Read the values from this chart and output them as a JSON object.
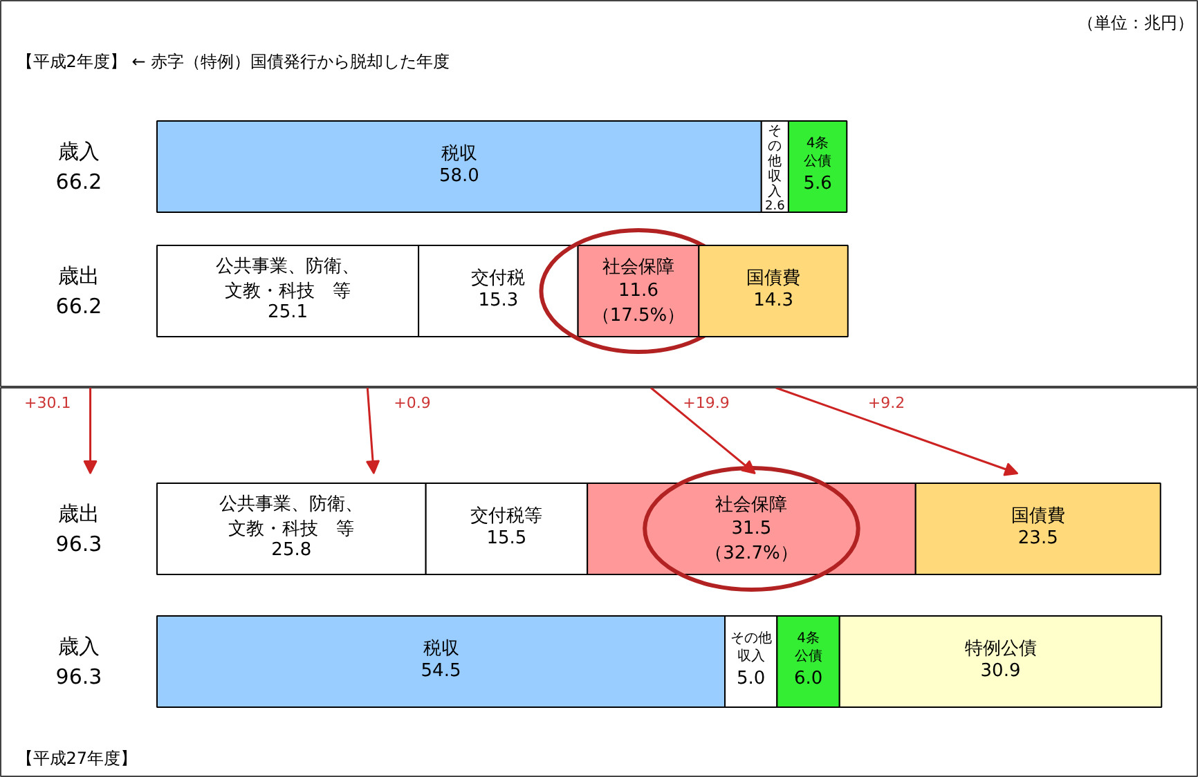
{
  "chart_data": [
    {
      "type": "bar",
      "orientation": "horizontal",
      "stacked": true,
      "categories": [
        "歳入\n66.2",
        "歳出\n66.2"
      ],
      "annotations": [
        "（単位：兆円）",
        "【平成2年度】 ←  赤字（特例）国債発行から脱却した年度"
      ],
      "series": [
        {
          "name": "税収",
          "color": "#99ccff",
          "values": [
            58.0,
            null
          ],
          "value_labels": [
            "58.0",
            null
          ]
        },
        {
          "name": "その他収入",
          "color": "#ffffff",
          "values": [
            2.6,
            null
          ],
          "value_labels": [
            "2.6",
            null
          ]
        },
        {
          "name": "4条公債",
          "color": "#33ee33",
          "values": [
            5.6,
            null
          ],
          "value_labels": [
            "5.6",
            null
          ]
        },
        {
          "name": "公共事業、防衛、文教・科技　等",
          "color": "#ffffff",
          "values": [
            null,
            25.1
          ],
          "value_labels": [
            null,
            "25.1"
          ]
        },
        {
          "name": "交付税",
          "color": "#ffffff",
          "values": [
            null,
            15.3
          ],
          "value_labels": [
            null,
            "15.3"
          ]
        },
        {
          "name": "社会保障",
          "color": "#ff9999",
          "values": [
            null,
            11.6
          ],
          "value_labels": [
            null,
            "11.6\n（17.5%）"
          ]
        },
        {
          "name": "国債費",
          "color": "#ffd97a",
          "values": [
            null,
            14.3
          ],
          "value_labels": [
            null,
            "14.3"
          ]
        }
      ]
    },
    {
      "type": "bar",
      "orientation": "horizontal",
      "stacked": true,
      "categories": [
        "歳出\n96.3",
        "歳入\n96.3"
      ],
      "annotations": [
        "+30.1",
        "+0.9",
        "+19.9",
        "+9.2",
        "【平成27年度】"
      ],
      "series": [
        {
          "name": "公共事業、防衛、文教・科技　等",
          "color": "#ffffff",
          "values": [
            25.8,
            null
          ],
          "value_labels": [
            "25.8",
            null
          ]
        },
        {
          "name": "交付税等",
          "color": "#ffffff",
          "values": [
            15.5,
            null
          ],
          "value_labels": [
            "15.5",
            null
          ]
        },
        {
          "name": "社会保障",
          "color": "#ff9999",
          "values": [
            31.5,
            null
          ],
          "value_labels": [
            "31.5\n（32.7%）",
            null
          ]
        },
        {
          "name": "国債費",
          "color": "#ffd97a",
          "values": [
            23.5,
            null
          ],
          "value_labels": [
            "23.5",
            null
          ]
        },
        {
          "name": "税収",
          "color": "#99ccff",
          "values": [
            null,
            54.5
          ],
          "value_labels": [
            null,
            "54.5"
          ]
        },
        {
          "name": "その他収入",
          "color": "#ffffff",
          "values": [
            null,
            5.0
          ],
          "value_labels": [
            null,
            "5.0"
          ]
        },
        {
          "name": "4条公債",
          "color": "#33ee33",
          "values": [
            null,
            6.0
          ],
          "value_labels": [
            null,
            "6.0"
          ]
        },
        {
          "name": "特例公債",
          "color": "#ffffcc",
          "values": [
            null,
            30.9
          ],
          "value_labels": [
            null,
            "30.9"
          ]
        }
      ]
    }
  ]
}
